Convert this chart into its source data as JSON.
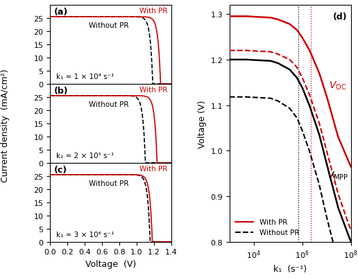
{
  "panel_abc": {
    "xlabel": "Voltage  (V)",
    "ylabel": "Current density  (mA/cm²)",
    "xlim": [
      0.0,
      1.4
    ],
    "ylim": [
      0,
      30
    ],
    "yticks": [
      0,
      5,
      10,
      15,
      20,
      25
    ],
    "xticks": [
      0.0,
      0.2,
      0.4,
      0.6,
      0.8,
      1.0,
      1.2,
      1.4
    ],
    "panels": [
      {
        "label": "(a)",
        "k1_text": "k₁ = 1 × 10⁴ s⁻¹",
        "jsc": 25.5,
        "voc_with": 1.275,
        "voc_without": 1.185,
        "n_with": 1.1,
        "n_without": 1.1,
        "rs_with": 0.003,
        "rs_without": 0.005
      },
      {
        "label": "(b)",
        "k1_text": "k₁ = 2 × 10⁵ s⁻¹",
        "jsc": 25.5,
        "voc_with": 1.235,
        "voc_without": 1.1,
        "n_with": 1.1,
        "n_without": 1.1,
        "rs_with": 0.003,
        "rs_without": 0.005
      },
      {
        "label": "(c)",
        "k1_text": "k₁ = 3 × 10⁶ s⁻¹",
        "jsc": 25.5,
        "voc_with": 1.18,
        "voc_without": 1.155,
        "n_with": 1.1,
        "n_without": 1.1,
        "rs_with": 0.003,
        "rs_without": 0.003
      }
    ]
  },
  "panel_d": {
    "xlabel": "k₁  (s⁻¹)",
    "ylabel": "Voltage (V)",
    "xlim": [
      1000.0,
      100000000.0
    ],
    "ylim": [
      0.8,
      1.32
    ],
    "yticks": [
      0.8,
      0.9,
      1.0,
      1.1,
      1.2,
      1.3
    ],
    "label": "(d)",
    "vline_black": 700000.0,
    "vline_red": 2200000.0,
    "voc_with_pr_x": [
      1000.0,
      5000.0,
      10000.0,
      50000.0,
      100000.0,
      300000.0,
      600000.0,
      1000000.0,
      2000000.0,
      5000000.0,
      10000000.0,
      30000000.0,
      100000000.0
    ],
    "voc_with_pr_y": [
      1.295,
      1.295,
      1.294,
      1.292,
      1.288,
      1.278,
      1.265,
      1.248,
      1.22,
      1.17,
      1.12,
      1.03,
      0.965
    ],
    "voc_without_pr_x": [
      1000.0,
      5000.0,
      10000.0,
      50000.0,
      100000.0,
      300000.0,
      600000.0,
      1000000.0,
      2000000.0,
      5000000.0,
      10000000.0,
      30000000.0,
      100000000.0
    ],
    "voc_without_pr_y": [
      1.22,
      1.22,
      1.219,
      1.217,
      1.212,
      1.2,
      1.183,
      1.16,
      1.122,
      1.06,
      1.0,
      0.905,
      0.825
    ],
    "vmpp_with_pr_x": [
      1000.0,
      5000.0,
      10000.0,
      50000.0,
      100000.0,
      300000.0,
      600000.0,
      1000000.0,
      2000000.0,
      5000000.0,
      10000000.0,
      30000000.0,
      100000000.0
    ],
    "vmpp_with_pr_y": [
      1.2,
      1.2,
      1.199,
      1.197,
      1.192,
      1.178,
      1.16,
      1.138,
      1.098,
      1.035,
      0.972,
      0.875,
      0.8
    ],
    "vmpp_without_pr_x": [
      1000.0,
      5000.0,
      10000.0,
      50000.0,
      100000.0,
      300000.0,
      600000.0,
      1000000.0,
      2000000.0,
      5000000.0,
      10000000.0,
      30000000.0,
      100000000.0
    ],
    "vmpp_without_pr_y": [
      1.118,
      1.118,
      1.117,
      1.115,
      1.109,
      1.093,
      1.072,
      1.044,
      0.998,
      0.925,
      0.855,
      0.755,
      0.675
    ]
  },
  "color_red": "#cc0000",
  "color_black": "#000000"
}
